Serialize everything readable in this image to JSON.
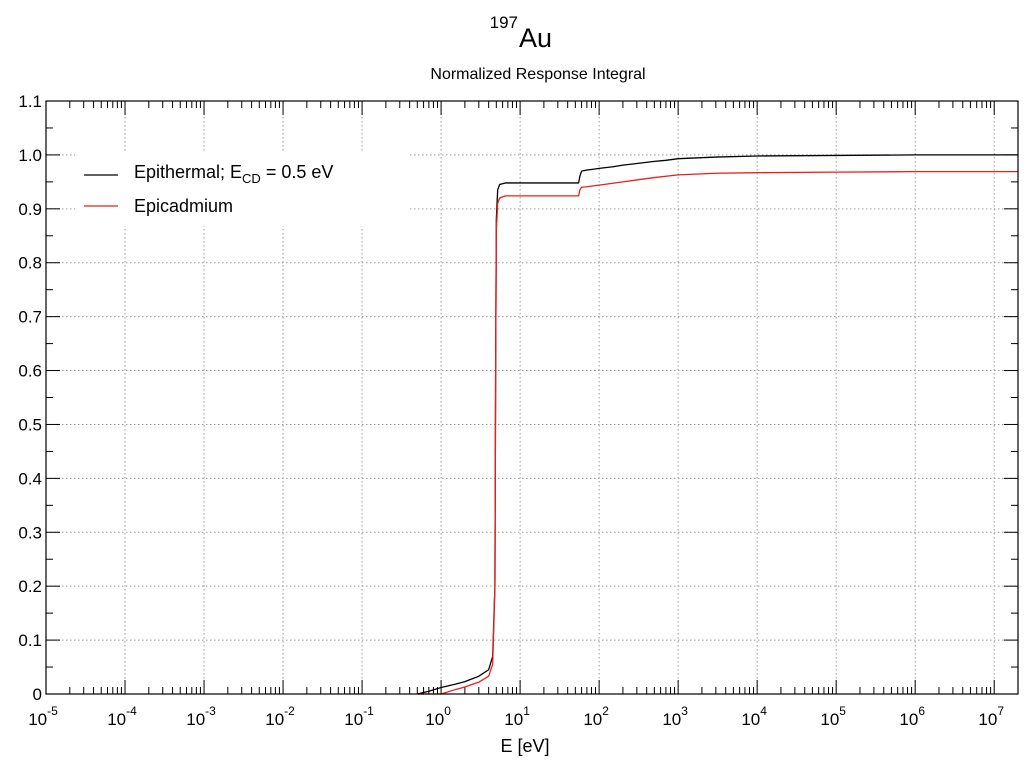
{
  "chart_data": {
    "type": "line",
    "title": {
      "superscript": "197",
      "main": "Au"
    },
    "subtitle": "Normalized Response Integral",
    "xlabel": "E [eV]",
    "ylabel": "",
    "xscale": "log",
    "xlim": [
      1e-05,
      20000000.0
    ],
    "ylim": [
      0,
      1.1
    ],
    "grid": true,
    "legend_position": "top-left",
    "x_tick_labels": [
      {
        "base": "10",
        "exp": "-5"
      },
      {
        "base": "10",
        "exp": "-4"
      },
      {
        "base": "10",
        "exp": "-3"
      },
      {
        "base": "10",
        "exp": "-2"
      },
      {
        "base": "10",
        "exp": "-1"
      },
      {
        "base": "10",
        "exp": "0"
      },
      {
        "base": "10",
        "exp": "1"
      },
      {
        "base": "10",
        "exp": "2"
      },
      {
        "base": "10",
        "exp": "3"
      },
      {
        "base": "10",
        "exp": "4"
      },
      {
        "base": "10",
        "exp": "5"
      },
      {
        "base": "10",
        "exp": "6"
      },
      {
        "base": "10",
        "exp": "7"
      }
    ],
    "y_tick_labels": [
      "0",
      "0.1",
      "0.2",
      "0.3",
      "0.4",
      "0.5",
      "0.6",
      "0.7",
      "0.8",
      "0.9",
      "1.0",
      "1.1"
    ],
    "series": [
      {
        "legend": {
          "prefix": "Epithermal;  E",
          "sub": "CD",
          "suffix": " = 0.5 eV"
        },
        "color": "#000000",
        "x": [
          0.5,
          0.7,
          1.0,
          1.5,
          2.0,
          3.0,
          4.0,
          4.5,
          4.8,
          4.9,
          5.0,
          5.2,
          5.5,
          6.5,
          10,
          20,
          55,
          57,
          60,
          70,
          80,
          100,
          150,
          200,
          300,
          500,
          700,
          1000,
          3000,
          10000,
          100000,
          1000000,
          10000000,
          20000000
        ],
        "y": [
          0.0,
          0.005,
          0.012,
          0.018,
          0.023,
          0.033,
          0.045,
          0.07,
          0.2,
          0.6,
          0.88,
          0.935,
          0.945,
          0.948,
          0.948,
          0.948,
          0.948,
          0.96,
          0.97,
          0.972,
          0.973,
          0.975,
          0.978,
          0.981,
          0.984,
          0.988,
          0.99,
          0.993,
          0.996,
          0.998,
          0.999,
          1.0,
          1.0,
          1.0
        ]
      },
      {
        "legend": {
          "prefix": "Epicadmium",
          "sub": "",
          "suffix": ""
        },
        "color": "#e8201a",
        "x": [
          0.5,
          1.0,
          1.5,
          2.0,
          3.0,
          4.0,
          4.5,
          4.8,
          4.9,
          5.0,
          5.2,
          5.5,
          6.5,
          10,
          20,
          55,
          57,
          60,
          70,
          100,
          200,
          500,
          1000,
          3000,
          10000,
          100000,
          1000000,
          10000000,
          20000000
        ],
        "y": [
          0.0,
          0.0,
          0.008,
          0.013,
          0.022,
          0.033,
          0.055,
          0.2,
          0.6,
          0.86,
          0.91,
          0.92,
          0.924,
          0.924,
          0.924,
          0.924,
          0.935,
          0.94,
          0.941,
          0.944,
          0.95,
          0.958,
          0.963,
          0.966,
          0.967,
          0.968,
          0.969,
          0.969,
          0.969
        ]
      }
    ]
  }
}
